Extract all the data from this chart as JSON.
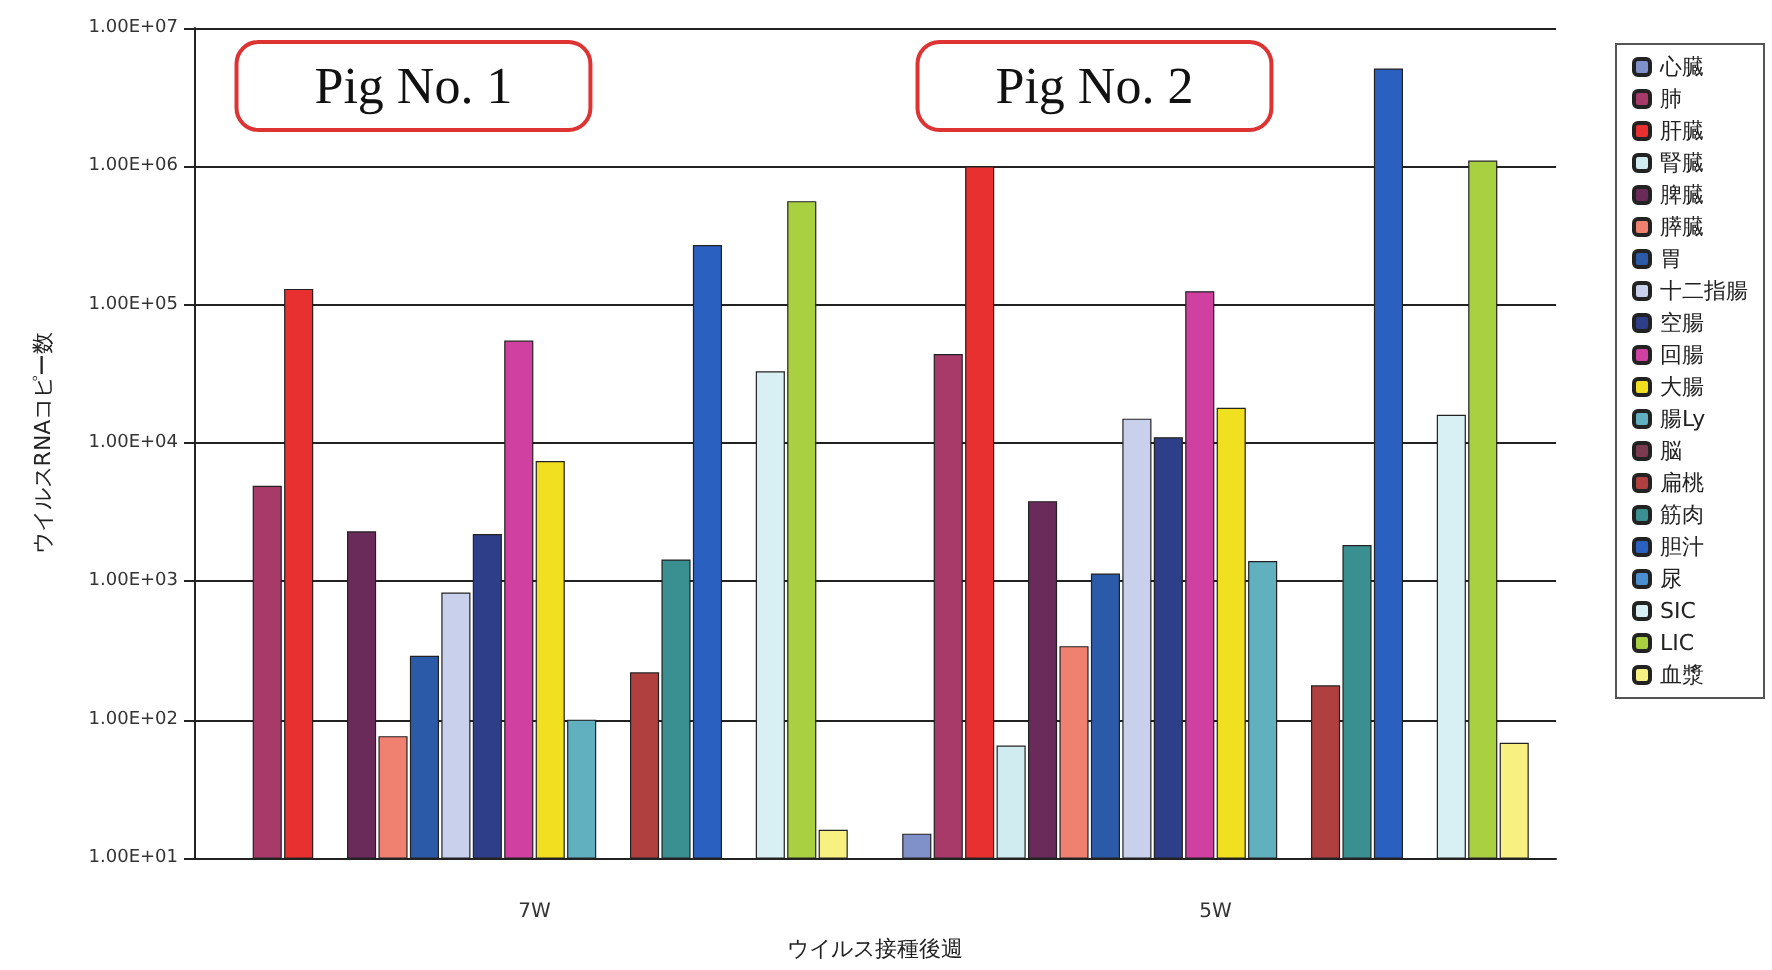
{
  "chart_data": {
    "type": "bar",
    "xlabel": "ウイルス接種後週",
    "ylabel": "ウイルスRNAコピー数",
    "categories": [
      "7W",
      "5W"
    ],
    "series": [
      {
        "name": "心臓",
        "color": "#8090c8",
        "values": [
          null,
          15
        ]
      },
      {
        "name": "肺",
        "color": "#a83a6a",
        "values": [
          4900,
          44000
        ]
      },
      {
        "name": "肝臓",
        "color": "#e83030",
        "values": [
          130000,
          1000000
        ]
      },
      {
        "name": "腎臓",
        "color": "#d0ecf0",
        "values": [
          null,
          65
        ]
      },
      {
        "name": "脾臓",
        "color": "#6a2a5a",
        "values": [
          2300,
          3800
        ]
      },
      {
        "name": "膵臓",
        "color": "#f08070",
        "values": [
          76,
          340
        ]
      },
      {
        "name": "胃",
        "color": "#2a5aa8",
        "values": [
          290,
          1140
        ]
      },
      {
        "name": "十二指腸",
        "color": "#c8d0ec",
        "values": [
          830,
          15000
        ]
      },
      {
        "name": "空腸",
        "color": "#2e3e88",
        "values": [
          2200,
          11000
        ]
      },
      {
        "name": "回腸",
        "color": "#d040a0",
        "values": [
          55000,
          125000
        ]
      },
      {
        "name": "大腸",
        "color": "#f0e020",
        "values": [
          7400,
          18000
        ]
      },
      {
        "name": "腸Ly",
        "color": "#60b0c0",
        "values": [
          100,
          1400
        ]
      },
      {
        "name": "脳",
        "color": "#7a3a50",
        "values": [
          null,
          null
        ]
      },
      {
        "name": "扁桃",
        "color": "#b04040",
        "values": [
          220,
          177
        ]
      },
      {
        "name": "筋肉",
        "color": "#3a9090",
        "values": [
          1440,
          1830
        ]
      },
      {
        "name": "胆汁",
        "color": "#2a60c0",
        "values": [
          270000,
          5100000
        ]
      },
      {
        "name": "尿",
        "color": "#4a90d0",
        "values": [
          null,
          null
        ]
      },
      {
        "name": "SIC",
        "color": "#d8f0f4",
        "values": [
          33000,
          16000
        ]
      },
      {
        "name": "LIC",
        "color": "#a8d040",
        "values": [
          560000,
          1100000
        ]
      },
      {
        "name": "血漿",
        "color": "#f8f080",
        "values": [
          16,
          68
        ]
      }
    ],
    "log": true,
    "ylim": [
      10,
      10000000
    ],
    "yticks": [
      {
        "value": 10,
        "label": "1.00E+01"
      },
      {
        "value": 100,
        "label": "1.00E+02"
      },
      {
        "value": 1000,
        "label": "1.00E+03"
      },
      {
        "value": 10000,
        "label": "1.00E+04"
      },
      {
        "value": 100000,
        "label": "1.00E+05"
      },
      {
        "value": 1000000,
        "label": "1.00E+06"
      },
      {
        "value": 10000000,
        "label": "1.00E+07"
      }
    ],
    "grid": "y",
    "legend": "right",
    "annotations": [
      "Pig No. 1",
      "Pig No. 2"
    ]
  }
}
